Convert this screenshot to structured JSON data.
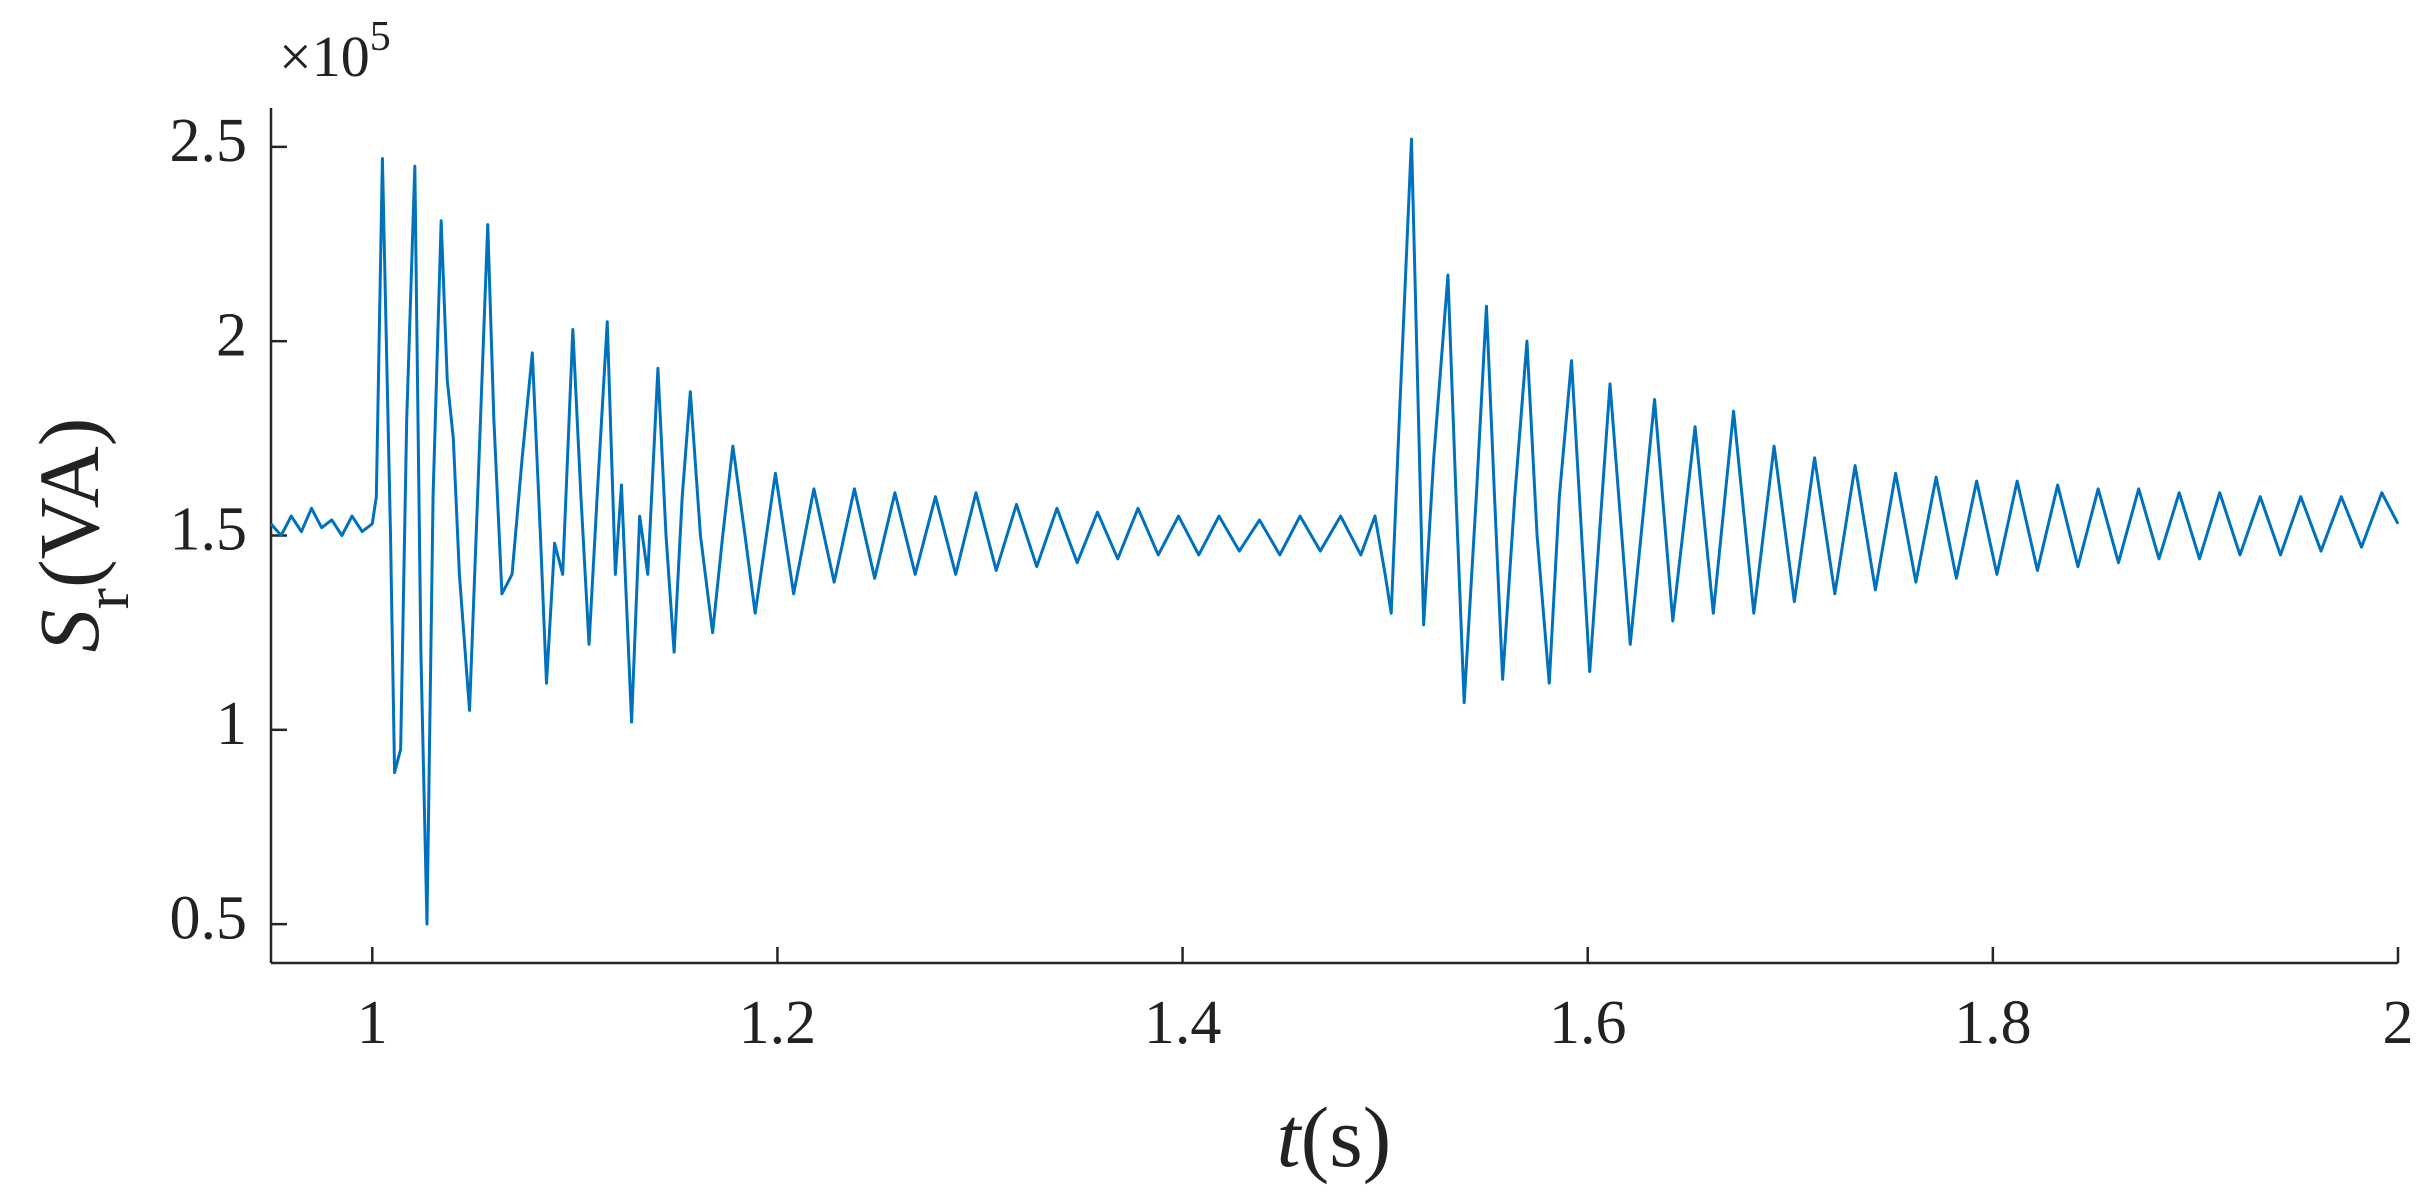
{
  "chart_data": {
    "type": "line",
    "xlabel": {
      "symbol": "t",
      "unit": "(s)"
    },
    "ylabel": {
      "symbol": "S",
      "subscript": "r",
      "unit": "(VA)"
    },
    "y_multiplier": {
      "base": "×10",
      "exponent": "5"
    },
    "xlim": [
      0.95,
      2
    ],
    "xticks": [
      1,
      1.2,
      1.4,
      1.6,
      1.8,
      2
    ],
    "ylim": [
      0.4,
      2.6
    ],
    "yticks": [
      0.5,
      1,
      1.5,
      2,
      2.5
    ],
    "grid": false,
    "x": [
      0.95,
      0.955,
      0.96,
      0.965,
      0.97,
      0.975,
      0.98,
      0.985,
      0.99,
      0.995,
      1.0,
      1.002,
      1.005,
      1.009,
      1.011,
      1.014,
      1.017,
      1.021,
      1.024,
      1.027,
      1.03,
      1.034,
      1.037,
      1.04,
      1.043,
      1.048,
      1.052,
      1.057,
      1.06,
      1.064,
      1.069,
      1.074,
      1.079,
      1.083,
      1.086,
      1.09,
      1.094,
      1.099,
      1.103,
      1.107,
      1.111,
      1.116,
      1.12,
      1.123,
      1.128,
      1.132,
      1.136,
      1.141,
      1.145,
      1.149,
      1.153,
      1.157,
      1.162,
      1.168,
      1.173,
      1.178,
      1.184,
      1.189,
      1.199,
      1.208,
      1.218,
      1.228,
      1.238,
      1.248,
      1.258,
      1.268,
      1.278,
      1.288,
      1.298,
      1.308,
      1.318,
      1.328,
      1.338,
      1.348,
      1.358,
      1.368,
      1.378,
      1.388,
      1.398,
      1.408,
      1.418,
      1.428,
      1.438,
      1.448,
      1.458,
      1.468,
      1.478,
      1.488,
      1.495,
      1.5,
      1.503,
      1.507,
      1.513,
      1.516,
      1.519,
      1.524,
      1.531,
      1.535,
      1.539,
      1.545,
      1.55,
      1.554,
      1.558,
      1.564,
      1.57,
      1.575,
      1.581,
      1.586,
      1.592,
      1.597,
      1.601,
      1.611,
      1.621,
      1.633,
      1.642,
      1.653,
      1.662,
      1.672,
      1.682,
      1.692,
      1.702,
      1.712,
      1.722,
      1.732,
      1.742,
      1.752,
      1.762,
      1.772,
      1.782,
      1.792,
      1.802,
      1.812,
      1.822,
      1.832,
      1.842,
      1.852,
      1.862,
      1.872,
      1.882,
      1.892,
      1.902,
      1.912,
      1.922,
      1.932,
      1.942,
      1.952,
      1.962,
      1.972,
      1.982,
      1.992,
      2.0
    ],
    "series": [
      {
        "color": "#0072bd",
        "values": [
          1.53,
          1.5,
          1.55,
          1.51,
          1.57,
          1.52,
          1.54,
          1.5,
          1.55,
          1.51,
          1.53,
          1.6,
          2.47,
          1.5,
          0.89,
          0.95,
          1.8,
          2.45,
          1.2,
          0.5,
          1.6,
          2.31,
          1.9,
          1.75,
          1.4,
          1.05,
          1.6,
          2.3,
          1.8,
          1.35,
          1.4,
          1.7,
          1.97,
          1.5,
          1.12,
          1.48,
          1.4,
          2.03,
          1.6,
          1.22,
          1.6,
          2.05,
          1.4,
          1.63,
          1.02,
          1.55,
          1.4,
          1.93,
          1.5,
          1.2,
          1.6,
          1.87,
          1.5,
          1.25,
          1.5,
          1.73,
          1.5,
          1.3,
          1.66,
          1.35,
          1.62,
          1.38,
          1.62,
          1.39,
          1.61,
          1.4,
          1.6,
          1.4,
          1.61,
          1.41,
          1.58,
          1.42,
          1.57,
          1.43,
          1.56,
          1.44,
          1.57,
          1.45,
          1.55,
          1.45,
          1.55,
          1.46,
          1.54,
          1.45,
          1.55,
          1.46,
          1.55,
          1.45,
          1.55,
          1.4,
          1.3,
          1.8,
          2.52,
          1.9,
          1.27,
          1.7,
          2.17,
          1.6,
          1.07,
          1.6,
          2.09,
          1.6,
          1.13,
          1.6,
          2.0,
          1.5,
          1.12,
          1.6,
          1.95,
          1.5,
          1.15,
          1.89,
          1.22,
          1.85,
          1.28,
          1.78,
          1.3,
          1.82,
          1.3,
          1.73,
          1.33,
          1.7,
          1.35,
          1.68,
          1.36,
          1.66,
          1.38,
          1.65,
          1.39,
          1.64,
          1.4,
          1.64,
          1.41,
          1.63,
          1.42,
          1.62,
          1.43,
          1.62,
          1.44,
          1.61,
          1.44,
          1.61,
          1.45,
          1.6,
          1.45,
          1.6,
          1.46,
          1.6,
          1.47,
          1.61,
          1.53
        ]
      }
    ]
  }
}
